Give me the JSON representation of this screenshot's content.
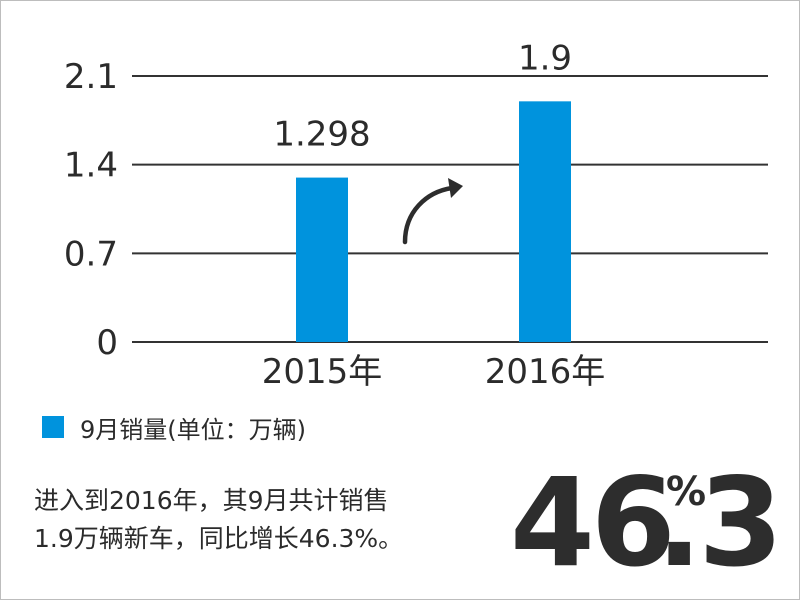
{
  "chart_data": {
    "type": "bar",
    "categories": [
      "2015年",
      "2016年"
    ],
    "values": [
      1.298,
      1.9
    ],
    "value_labels": [
      "1.298",
      "1.9"
    ],
    "title": "",
    "xlabel": "",
    "ylabel": "",
    "ylim": [
      0,
      2.1
    ],
    "yticks": [
      0,
      0.7,
      1.4,
      2.1
    ],
    "ytick_labels": [
      "0",
      "0.7",
      "1.4",
      "2.1"
    ],
    "grid": true,
    "legend": {
      "placement": "bottom-left",
      "entries": [
        {
          "label": "9月销量(单位：万辆)",
          "color": "#0093dd"
        }
      ]
    },
    "annotations": [
      {
        "type": "curved-arrow",
        "meaning": "increase"
      }
    ]
  },
  "colors": {
    "bar": "#0093dd",
    "gridline": "#333333",
    "text": "#2b2b2b",
    "highlight_text": "#2d2d2d"
  },
  "summary": {
    "line1": "进入到2016年，其9月共计销售",
    "line2": "1.9万辆新车，同比增长46.3%。"
  },
  "highlight": {
    "integer": "46",
    "decimal": ".3",
    "percent": "%"
  }
}
